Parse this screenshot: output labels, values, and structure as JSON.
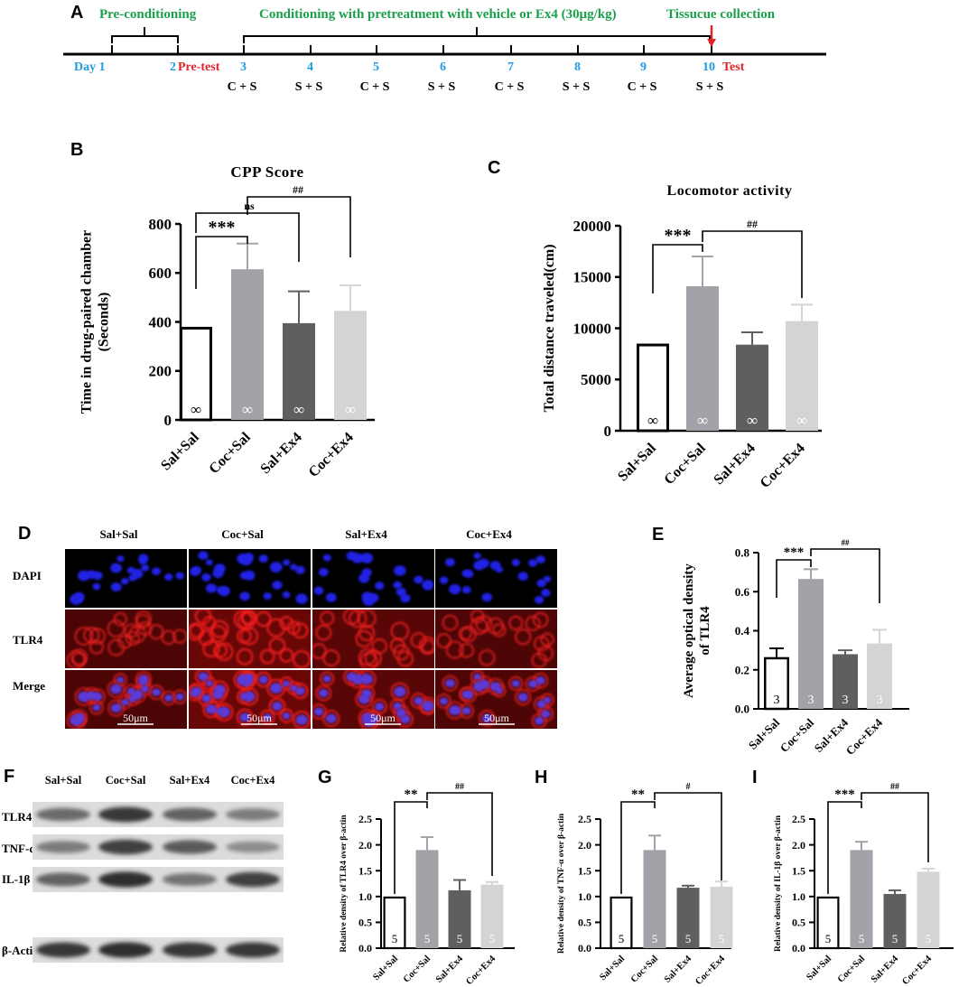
{
  "colors": {
    "timeline_green": "#1aa04a",
    "timeline_blue": "#1e9be0",
    "timeline_red": "#e3212a",
    "bar_sal_sal": "#ffffff",
    "bar_coc_sal": "#a2a2a8",
    "bar_sal_ex4": "#5f5f5f",
    "bar_coc_ex4": "#d4d4d4",
    "dapi_blue": "#2020e0",
    "tlr4_red": "#d01818"
  },
  "panel_a": {
    "letter": "A",
    "preconditioning": "Pre-conditioning",
    "conditioning": "Conditioning with pretreatment with vehicle or Ex4 (30μg/kg)",
    "tissue": "Tissucue collection",
    "days": [
      {
        "label": "Day 1",
        "cond": ""
      },
      {
        "label": "2",
        "cond": ""
      },
      {
        "label": "3",
        "cond": "C + S"
      },
      {
        "label": "4",
        "cond": "S + S"
      },
      {
        "label": "5",
        "cond": "C + S"
      },
      {
        "label": "6",
        "cond": "S + S"
      },
      {
        "label": "7",
        "cond": "C + S"
      },
      {
        "label": "8",
        "cond": "S + S"
      },
      {
        "label": "9",
        "cond": "C + S"
      },
      {
        "label": "10",
        "cond": "S + S"
      }
    ],
    "pretest": "Pre-test",
    "test": "Test"
  },
  "chart_data": [
    {
      "panel": "B",
      "type": "bar",
      "title": "CPP Score",
      "ylabel": "Time in drug-paired chamber (Seconds)",
      "ylabel_lines": [
        "Time in drug-paired chamber",
        "(Seconds)"
      ],
      "categories": [
        "Sal+Sal",
        "Coc+Sal",
        "Sal+Ex4",
        "Coc+Ex4"
      ],
      "values": [
        380,
        615,
        395,
        445
      ],
      "errors": [
        0,
        105,
        130,
        105
      ],
      "n_labels": [
        "∞",
        "∞",
        "∞",
        "∞"
      ],
      "ylim": [
        0,
        800
      ],
      "yticks": [
        "0",
        "200",
        "400",
        "600",
        "800"
      ],
      "significance": [
        "***",
        "ns",
        "##"
      ]
    },
    {
      "panel": "C",
      "type": "bar",
      "title": "Locomotor activity",
      "ylabel": "Total distance traveled(cm)",
      "categories": [
        "Sal+Sal",
        "Coc+Sal",
        "Sal+Ex4",
        "Coc+Ex4"
      ],
      "values": [
        8500,
        14100,
        8400,
        10700
      ],
      "errors": [
        0,
        2900,
        1200,
        1600
      ],
      "n_labels": [
        "∞",
        "∞",
        "∞",
        "∞"
      ],
      "ylim": [
        0,
        20000
      ],
      "yticks": [
        "0",
        "5000",
        "10000",
        "15000",
        "20000"
      ],
      "significance": [
        "***",
        "##"
      ]
    },
    {
      "panel": "E",
      "type": "bar",
      "title": "",
      "ylabel": "Average optical density of TLR4",
      "ylabel_lines": [
        "Average optical density",
        "of TLR4"
      ],
      "categories": [
        "Sal+Sal",
        "Coc+Sal",
        "Sal+Ex4",
        "Coc+Ex4"
      ],
      "values": [
        0.265,
        0.665,
        0.28,
        0.335
      ],
      "errors": [
        0.045,
        0.05,
        0.02,
        0.07
      ],
      "n_labels": [
        "3",
        "3",
        "3",
        "3"
      ],
      "ylim": [
        0,
        0.8
      ],
      "yticks": [
        "0.0",
        "0.2",
        "0.4",
        "0.6",
        "0.8"
      ],
      "significance": [
        "***",
        "##"
      ]
    },
    {
      "panel": "G",
      "type": "bar",
      "title": "",
      "ylabel": "Relative density of TLR4 over β-actin",
      "categories": [
        "Sal+Sal",
        "Coc+Sal",
        "Sal+Ex4",
        "Coc+Ex4"
      ],
      "values": [
        1.0,
        1.9,
        1.12,
        1.23
      ],
      "errors": [
        0,
        0.25,
        0.2,
        0.05
      ],
      "n_labels": [
        "5",
        "5",
        "5",
        "5"
      ],
      "ylim": [
        0,
        2.5
      ],
      "yticks": [
        "0.0",
        "0.5",
        "1.0",
        "1.5",
        "2.0",
        "2.5"
      ],
      "significance": [
        "**",
        "##"
      ]
    },
    {
      "panel": "H",
      "type": "bar",
      "title": "",
      "ylabel": "Relative density of TNF-α over β-actin",
      "categories": [
        "Sal+Sal",
        "Coc+Sal",
        "Sal+Ex4",
        "Coc+Ex4"
      ],
      "values": [
        1.0,
        1.9,
        1.17,
        1.19
      ],
      "errors": [
        0,
        0.28,
        0.04,
        0.1
      ],
      "n_labels": [
        "5",
        "5",
        "5",
        "5"
      ],
      "ylim": [
        0,
        2.5
      ],
      "yticks": [
        "0.0",
        "0.5",
        "1.0",
        "1.5",
        "2.0",
        "2.5"
      ],
      "significance": [
        "**",
        "#"
      ]
    },
    {
      "panel": "I",
      "type": "bar",
      "title": "",
      "ylabel": "Relative density of IL-1β over β-actin",
      "categories": [
        "Sal+Sal",
        "Coc+Sal",
        "Sal+Ex4",
        "Coc+Ex4"
      ],
      "values": [
        1.0,
        1.9,
        1.05,
        1.48
      ],
      "errors": [
        0,
        0.16,
        0.07,
        0.06
      ],
      "n_labels": [
        "5",
        "5",
        "5",
        "5"
      ],
      "ylim": [
        0,
        2.5
      ],
      "yticks": [
        "0.0",
        "0.5",
        "1.0",
        "1.5",
        "2.0",
        "2.5"
      ],
      "significance": [
        "***",
        "##"
      ]
    }
  ],
  "panel_d": {
    "letter": "D",
    "columns": [
      "Sal+Sal",
      "Coc+Sal",
      "Sal+Ex4",
      "Coc+Ex4"
    ],
    "rows": [
      "DAPI",
      "TLR4",
      "Merge"
    ],
    "scale_bar": "50μm"
  },
  "panel_f": {
    "letter": "F",
    "columns": [
      "Sal+Sal",
      "Coc+Sal",
      "Sal+Ex4",
      "Coc+Ex4"
    ],
    "rows": [
      "TLR4",
      "TNF-α",
      "IL-1β",
      "β-Actin"
    ]
  },
  "letters": {
    "B": "B",
    "C": "C",
    "E": "E",
    "G": "G",
    "H": "H",
    "I": "I"
  }
}
